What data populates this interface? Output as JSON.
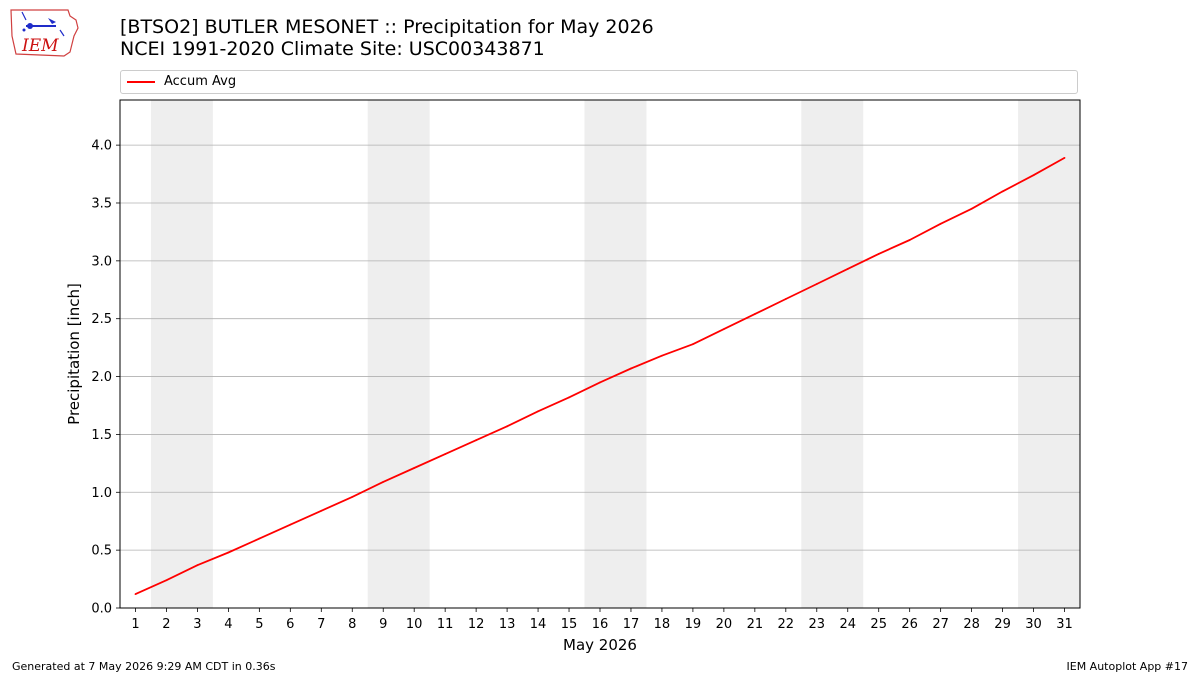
{
  "header": {
    "title_line1": "[BTSO2] BUTLER MESONET :: Precipitation for May 2026",
    "title_line2": "NCEI 1991-2020 Climate Site: USC00343871"
  },
  "logo": {
    "text": "IEM",
    "icon": "iem-iowa-logo"
  },
  "footer": {
    "generated": "Generated at 7 May 2026 9:29 AM CDT in 0.36s",
    "app": "IEM Autoplot App #17"
  },
  "colors": {
    "series": "#ff0000",
    "weekend_band": "#eeeeee",
    "grid": "#b0b0b0",
    "title_red": "#cc1111"
  },
  "chart_data": {
    "type": "line",
    "xlabel": "May 2026",
    "ylabel": "Precipitation [inch]",
    "xlim": [
      0.5,
      31.5
    ],
    "ylim": [
      0,
      4.39
    ],
    "yticks": [
      0.0,
      0.5,
      1.0,
      1.5,
      2.0,
      2.5,
      3.0,
      3.5,
      4.0
    ],
    "ytick_labels": [
      "0.0",
      "0.5",
      "1.0",
      "1.5",
      "2.0",
      "2.5",
      "3.0",
      "3.5",
      "4.0"
    ],
    "xticks": [
      1,
      2,
      3,
      4,
      5,
      6,
      7,
      8,
      9,
      10,
      11,
      12,
      13,
      14,
      15,
      16,
      17,
      18,
      19,
      20,
      21,
      22,
      23,
      24,
      25,
      26,
      27,
      28,
      29,
      30,
      31
    ],
    "grid": "horizontal",
    "legend": "top",
    "weekend_bands": [
      [
        2,
        3
      ],
      [
        9,
        10
      ],
      [
        16,
        17
      ],
      [
        23,
        24
      ],
      [
        30,
        31
      ]
    ],
    "series": [
      {
        "name": "Accum Avg",
        "x": [
          1,
          2,
          3,
          4,
          5,
          6,
          7,
          8,
          9,
          10,
          11,
          12,
          13,
          14,
          15,
          16,
          17,
          18,
          19,
          20,
          21,
          22,
          23,
          24,
          25,
          26,
          27,
          28,
          29,
          30,
          31
        ],
        "values": [
          0.12,
          0.24,
          0.37,
          0.48,
          0.6,
          0.72,
          0.84,
          0.96,
          1.09,
          1.21,
          1.33,
          1.45,
          1.57,
          1.7,
          1.82,
          1.95,
          2.07,
          2.18,
          2.28,
          2.41,
          2.54,
          2.67,
          2.8,
          2.93,
          3.06,
          3.18,
          3.32,
          3.45,
          3.6,
          3.74,
          3.89
        ]
      }
    ]
  }
}
